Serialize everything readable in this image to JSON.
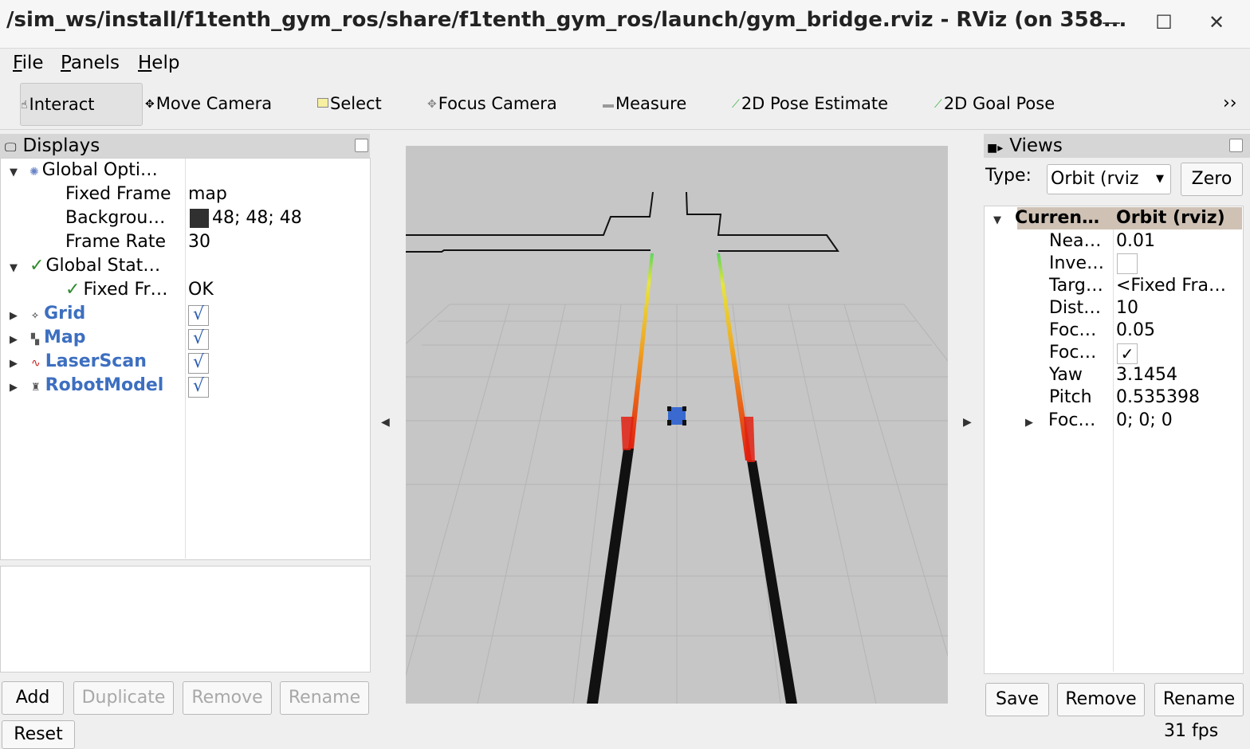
{
  "window": {
    "title": "/sim_ws/install/f1tenth_gym_ros/share/f1tenth_gym_ros/launch/gym_bridge.rviz - RViz (on 358...",
    "minimize": "—",
    "maximize": "☐",
    "close": "✕"
  },
  "menu": {
    "file": "File",
    "panels": "Panels",
    "help": "Help"
  },
  "toolbar": {
    "interact": "Interact",
    "move_camera": "Move Camera",
    "select": "Select",
    "focus_camera": "Focus Camera",
    "measure": "Measure",
    "pose_estimate": "2D Pose Estimate",
    "goal_pose": "2D Goal Pose",
    "overflow": "››"
  },
  "displays": {
    "header": "Displays",
    "global_options": "Global Opti…",
    "fixed_frame_label": "Fixed Frame",
    "fixed_frame_value": "map",
    "background_label": "Backgrou…",
    "background_value": "48; 48; 48",
    "background_color": "#303030",
    "frame_rate_label": "Frame Rate",
    "frame_rate_value": "30",
    "global_status": "Global Stat…",
    "fixed_frame_status_label": "Fixed Fr…",
    "fixed_frame_status_value": "OK",
    "items": [
      "Grid",
      "Map",
      "LaserScan",
      "RobotModel"
    ],
    "checked": "√"
  },
  "buttons": {
    "add": "Add",
    "duplicate": "Duplicate",
    "remove": "Remove",
    "rename": "Rename",
    "reset": "Reset"
  },
  "views": {
    "header": "Views",
    "type_label": "Type:",
    "type_value": "Orbit (rviz",
    "zero": "Zero",
    "current_label": "Curren…",
    "current_value": "Orbit (rviz)",
    "props": [
      {
        "label": "Nea…",
        "value": "0.01"
      },
      {
        "label": "Inve…",
        "value": ""
      },
      {
        "label": "Targ…",
        "value": "<Fixed Fra…"
      },
      {
        "label": "Dist…",
        "value": "10"
      },
      {
        "label": "Foc…",
        "value": "0.05"
      },
      {
        "label": "Foc…",
        "value": "✓"
      },
      {
        "label": "Yaw",
        "value": "3.1454"
      },
      {
        "label": "Pitch",
        "value": "0.535398"
      },
      {
        "label": "Foc…",
        "value": "0; 0; 0"
      }
    ],
    "save": "Save",
    "remove": "Remove",
    "rename": "Rename"
  },
  "status": {
    "fps": "31 fps"
  }
}
